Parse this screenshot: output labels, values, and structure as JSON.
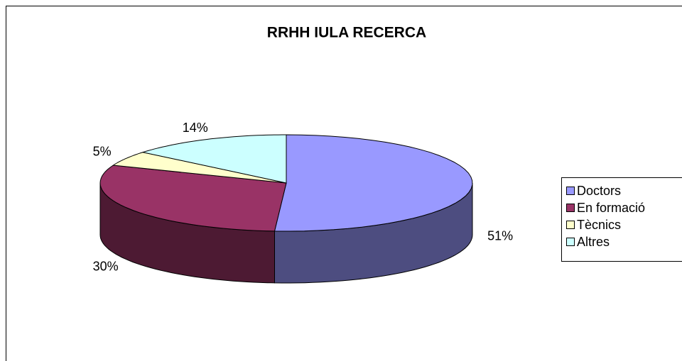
{
  "chart_data": {
    "type": "pie",
    "title": "RRHH IULA RECERCA",
    "categories": [
      "Doctors",
      "En formació",
      "Tècnics",
      "Altres"
    ],
    "values": [
      51,
      30,
      5,
      14
    ],
    "value_labels": [
      "51%",
      "30%",
      "5%",
      "14%"
    ],
    "colors": [
      "#9999ff",
      "#993366",
      "#ffffcc",
      "#ccffff"
    ],
    "legend": "right"
  }
}
